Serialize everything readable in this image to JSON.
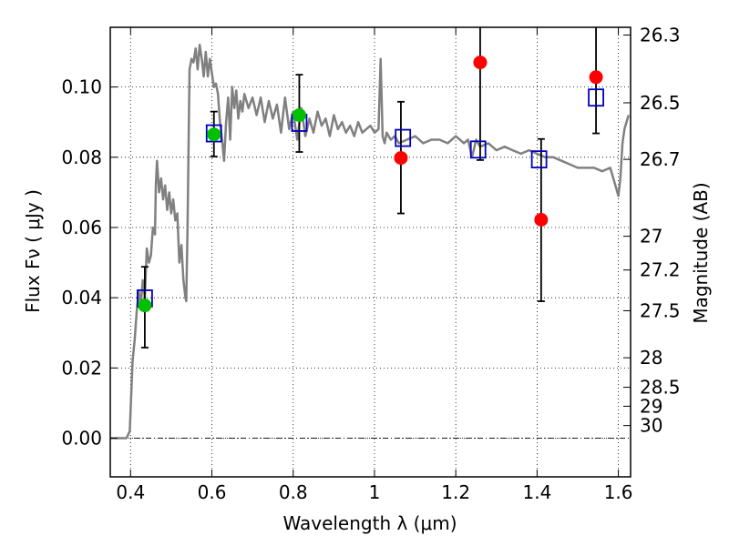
{
  "chart_data": {
    "type": "scatter",
    "title": "",
    "xlabel": "Wavelength  λ (μm)",
    "ylabel": "Flux  Fν  ( μJy )",
    "y2label": "Magnitude (AB)",
    "xlim": [
      0.35,
      1.63
    ],
    "ylim": [
      -0.011,
      0.117
    ],
    "grid": true,
    "x_ticks": [
      {
        "value": 0.4,
        "label": "0.4"
      },
      {
        "value": 0.6,
        "label": "0.6"
      },
      {
        "value": 0.8,
        "label": "0.8"
      },
      {
        "value": 1.0,
        "label": "1"
      },
      {
        "value": 1.2,
        "label": "1.2"
      },
      {
        "value": 1.4,
        "label": "1.4"
      },
      {
        "value": 1.6,
        "label": "1.6"
      }
    ],
    "y_ticks": [
      {
        "value": 0.0,
        "label": "0.00"
      },
      {
        "value": 0.02,
        "label": "0.02"
      },
      {
        "value": 0.04,
        "label": "0.04"
      },
      {
        "value": 0.06,
        "label": "0.06"
      },
      {
        "value": 0.08,
        "label": "0.08"
      },
      {
        "value": 0.1,
        "label": "0.10"
      }
    ],
    "mag_ticks": [
      {
        "flux": 0.1148,
        "label": "26.3"
      },
      {
        "flux": 0.0955,
        "label": "26.5"
      },
      {
        "flux": 0.0794,
        "label": "26.7"
      },
      {
        "flux": 0.0575,
        "label": "27"
      },
      {
        "flux": 0.0479,
        "label": "27.2"
      },
      {
        "flux": 0.0363,
        "label": "27.5"
      },
      {
        "flux": 0.0229,
        "label": "28"
      },
      {
        "flux": 0.0145,
        "label": "28.5"
      },
      {
        "flux": 0.0091,
        "label": "29"
      },
      {
        "flux": 0.0036,
        "label": "30"
      }
    ],
    "series": [
      {
        "name": "model_sed",
        "kind": "line",
        "color": "#808080",
        "x": [
          0.35,
          0.39,
          0.398,
          0.405,
          0.41,
          0.415,
          0.42,
          0.425,
          0.43,
          0.435,
          0.44,
          0.445,
          0.45,
          0.455,
          0.46,
          0.462,
          0.465,
          0.47,
          0.475,
          0.48,
          0.485,
          0.49,
          0.495,
          0.5,
          0.505,
          0.51,
          0.515,
          0.52,
          0.525,
          0.53,
          0.535,
          0.537,
          0.54,
          0.545,
          0.55,
          0.555,
          0.56,
          0.565,
          0.57,
          0.575,
          0.58,
          0.585,
          0.59,
          0.595,
          0.6,
          0.605,
          0.61,
          0.615,
          0.62,
          0.625,
          0.63,
          0.635,
          0.64,
          0.645,
          0.65,
          0.655,
          0.66,
          0.665,
          0.67,
          0.675,
          0.68,
          0.69,
          0.7,
          0.71,
          0.72,
          0.73,
          0.74,
          0.75,
          0.76,
          0.77,
          0.78,
          0.79,
          0.8,
          0.81,
          0.82,
          0.83,
          0.84,
          0.85,
          0.86,
          0.87,
          0.88,
          0.89,
          0.9,
          0.91,
          0.92,
          0.93,
          0.94,
          0.95,
          0.96,
          0.97,
          0.98,
          0.99,
          1.0,
          1.01,
          1.015,
          1.02,
          1.025,
          1.03,
          1.04,
          1.05,
          1.06,
          1.08,
          1.1,
          1.12,
          1.14,
          1.16,
          1.18,
          1.2,
          1.22,
          1.23,
          1.24,
          1.25,
          1.26,
          1.28,
          1.3,
          1.32,
          1.34,
          1.36,
          1.38,
          1.4,
          1.42,
          1.44,
          1.46,
          1.48,
          1.5,
          1.52,
          1.54,
          1.56,
          1.58,
          1.595,
          1.6,
          1.605,
          1.61,
          1.615,
          1.62,
          1.625
        ],
        "y": [
          0.0,
          0.0,
          0.002,
          0.022,
          0.028,
          0.036,
          0.042,
          0.038,
          0.045,
          0.04,
          0.054,
          0.05,
          0.052,
          0.06,
          0.058,
          0.072,
          0.079,
          0.07,
          0.074,
          0.068,
          0.072,
          0.065,
          0.07,
          0.064,
          0.068,
          0.062,
          0.064,
          0.05,
          0.055,
          0.045,
          0.04,
          0.039,
          0.06,
          0.105,
          0.108,
          0.107,
          0.111,
          0.105,
          0.112,
          0.108,
          0.103,
          0.11,
          0.103,
          0.108,
          0.104,
          0.1,
          0.101,
          0.098,
          0.09,
          0.085,
          0.079,
          0.09,
          0.097,
          0.085,
          0.1,
          0.094,
          0.099,
          0.091,
          0.096,
          0.093,
          0.098,
          0.094,
          0.097,
          0.092,
          0.097,
          0.09,
          0.096,
          0.091,
          0.095,
          0.087,
          0.097,
          0.088,
          0.093,
          0.085,
          0.094,
          0.086,
          0.091,
          0.087,
          0.093,
          0.089,
          0.091,
          0.086,
          0.092,
          0.088,
          0.09,
          0.087,
          0.089,
          0.086,
          0.09,
          0.087,
          0.088,
          0.089,
          0.087,
          0.088,
          0.108,
          0.086,
          0.084,
          0.087,
          0.085,
          0.086,
          0.084,
          0.085,
          0.086,
          0.084,
          0.085,
          0.085,
          0.084,
          0.086,
          0.084,
          0.085,
          0.08,
          0.085,
          0.083,
          0.084,
          0.082,
          0.083,
          0.082,
          0.081,
          0.082,
          0.081,
          0.08,
          0.08,
          0.079,
          0.078,
          0.077,
          0.077,
          0.077,
          0.076,
          0.077,
          0.071,
          0.069,
          0.074,
          0.084,
          0.088,
          0.09,
          0.092
        ]
      },
      {
        "name": "green_points",
        "kind": "scatter",
        "color": "#00c000",
        "x": [
          0.435,
          0.605,
          0.815
        ],
        "y": [
          0.0378,
          0.0865,
          0.092
        ]
      },
      {
        "name": "red_points",
        "kind": "scatter",
        "color": "#ff0000",
        "x": [
          1.065,
          1.26,
          1.41,
          1.545
        ],
        "y": [
          0.0798,
          0.107,
          0.0622,
          0.1028
        ]
      },
      {
        "name": "blue_model_boxes",
        "kind": "scatter",
        "color": "#0000c0",
        "x": [
          0.435,
          0.605,
          0.815,
          1.07,
          1.255,
          1.405,
          1.545
        ],
        "y": [
          0.0398,
          0.0868,
          0.0898,
          0.0855,
          0.0822,
          0.0794,
          0.097
        ]
      }
    ],
    "error_bars": [
      {
        "x": 0.435,
        "low": 0.0258,
        "high": 0.0488
      },
      {
        "x": 0.605,
        "low": 0.0802,
        "high": 0.093
      },
      {
        "x": 0.815,
        "low": 0.0815,
        "high": 0.1035
      },
      {
        "x": 1.065,
        "low": 0.064,
        "high": 0.0958
      },
      {
        "x": 1.26,
        "low": 0.0792,
        "high": 0.117
      },
      {
        "x": 1.41,
        "low": 0.039,
        "high": 0.0852
      },
      {
        "x": 1.545,
        "low": 0.0868,
        "high": 0.117
      }
    ]
  }
}
